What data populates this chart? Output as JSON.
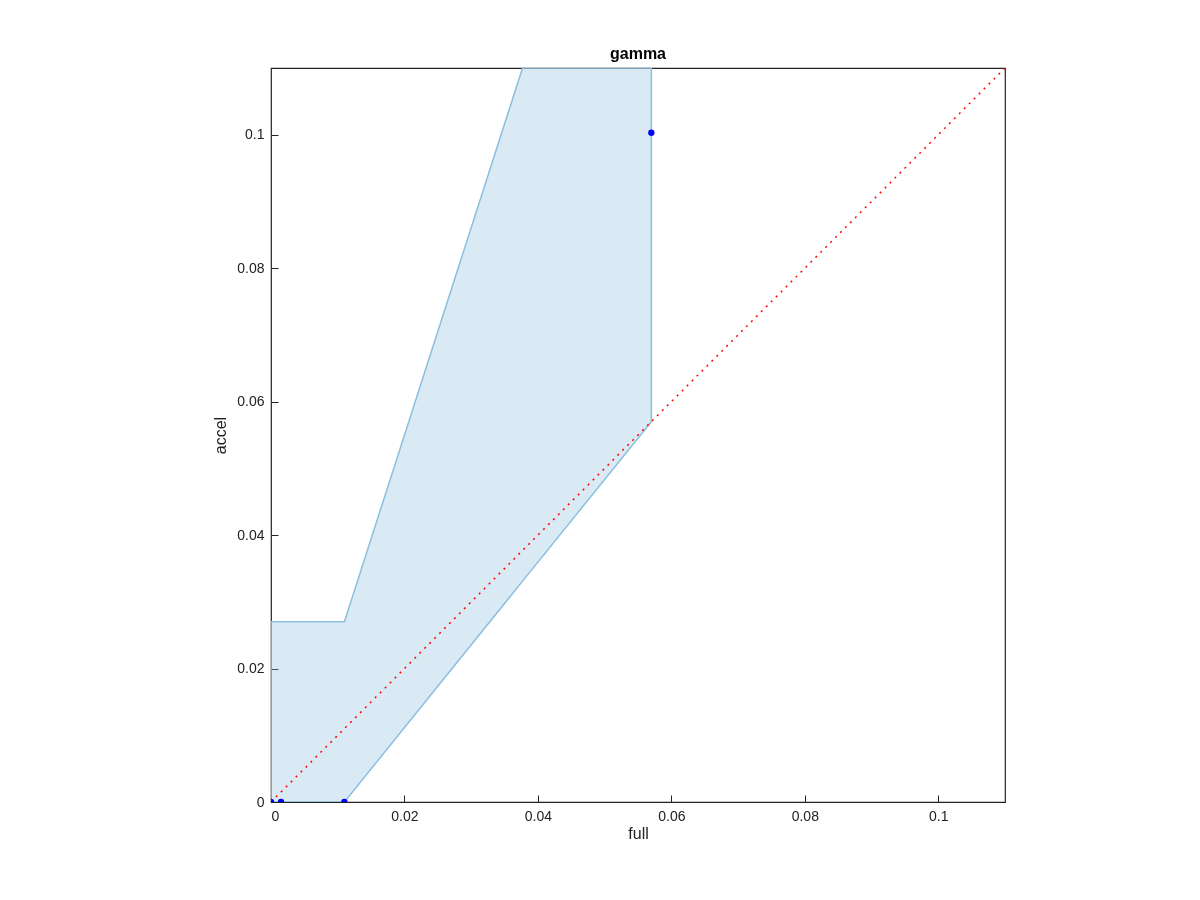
{
  "chart_data": {
    "type": "scatter",
    "title": "gamma",
    "xlabel": "full",
    "ylabel": "accel",
    "xlim": [
      0,
      0.11
    ],
    "ylim": [
      0,
      0.11
    ],
    "xticks": [
      0,
      0.02,
      0.04,
      0.06,
      0.08,
      0.1
    ],
    "yticks": [
      0,
      0.02,
      0.04,
      0.06,
      0.08,
      0.1
    ],
    "grid": false,
    "series": [
      {
        "type": "area",
        "color": "#8bbfe0",
        "x": [
          0,
          0.011,
          0.0377,
          0.057
        ],
        "values": [
          null,
          null,
          null,
          null
        ],
        "lower": [
          0,
          0,
          0.0331,
          0.057
        ],
        "upper": [
          0.027,
          0.027,
          0.11,
          0.11
        ]
      },
      {
        "type": "line",
        "color": "#ff0000",
        "line_style": "dotted",
        "x": [
          0,
          0.11
        ],
        "values": [
          0,
          0.11
        ]
      },
      {
        "type": "scatter",
        "color": "#0000ff",
        "marker": "circle",
        "x": [
          0,
          0.0015,
          0.011,
          0.057
        ],
        "values": [
          0,
          0,
          0,
          0.1003
        ]
      }
    ]
  }
}
